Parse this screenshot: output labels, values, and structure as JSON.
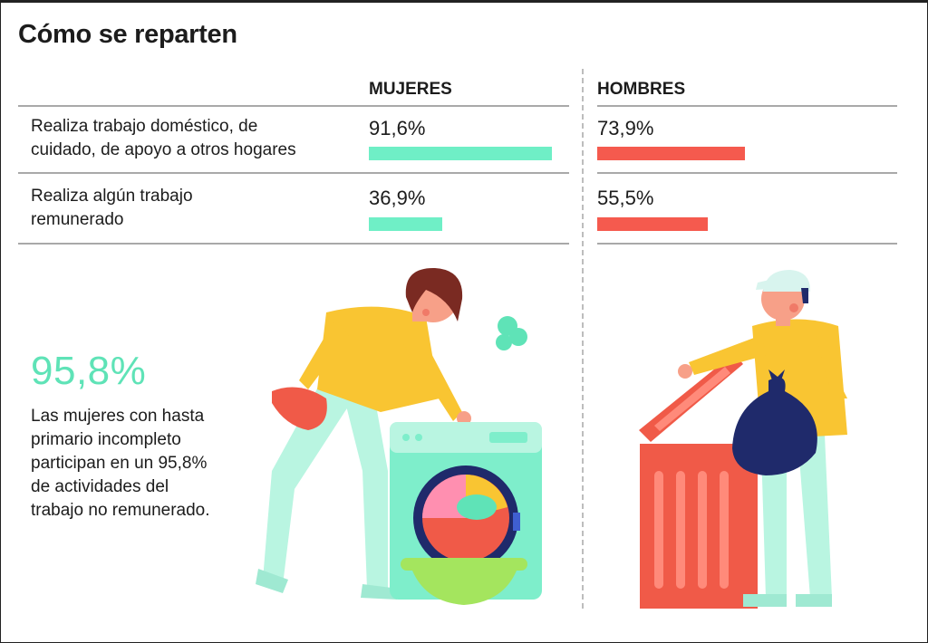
{
  "title": "Cómo se reparten",
  "columns": {
    "women": "MUJERES",
    "men": "HOMBRES"
  },
  "colors": {
    "women": "#6fefc6",
    "men": "#f55a4e",
    "accent_text": "#5fe3b7"
  },
  "rows": [
    {
      "label_line1": "Realiza trabajo doméstico, de",
      "label_line2": "cuidado, de apoyo a otros hogares",
      "women_pct": "91,6%",
      "men_pct": "73,9%"
    },
    {
      "label_line1": "Realiza algún trabajo",
      "label_line2": "remunerado",
      "women_pct": "36,9%",
      "men_pct": "55,5%"
    }
  ],
  "highlight": {
    "value": "95,8%",
    "lines": [
      "Las mujeres con hasta",
      "primario incompleto",
      "participan en un 95,8%",
      "de actividades del",
      "trabajo no remunerado."
    ]
  },
  "chart_data": {
    "type": "bar",
    "title": "Cómo se reparten",
    "categories": [
      "Realiza trabajo doméstico, de cuidado, de apoyo a otros hogares",
      "Realiza algún trabajo remunerado"
    ],
    "series": [
      {
        "name": "MUJERES",
        "values": [
          91.6,
          36.9
        ]
      },
      {
        "name": "HOMBRES",
        "values": [
          73.9,
          55.5
        ]
      }
    ],
    "ylim": [
      0,
      100
    ],
    "xlabel": "",
    "ylabel": ""
  }
}
